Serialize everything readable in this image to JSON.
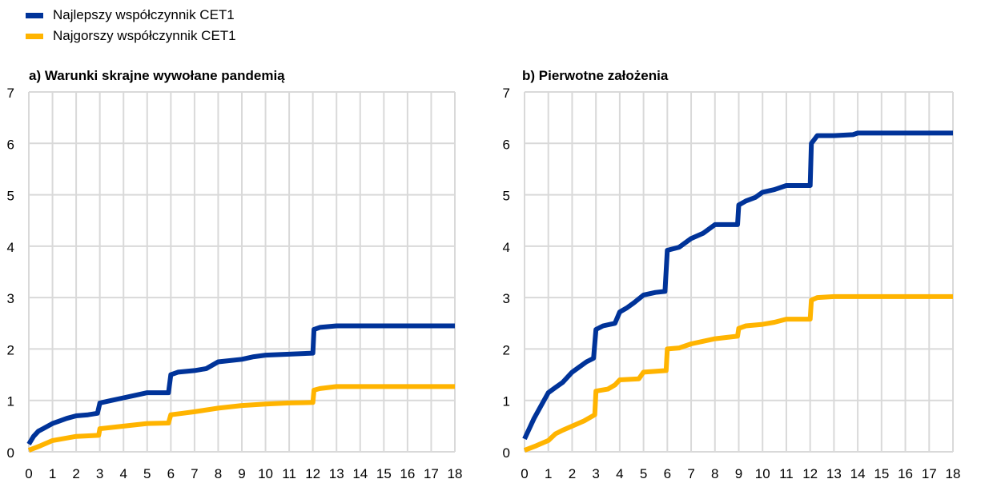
{
  "legend": {
    "items": [
      {
        "label": "Najlepszy współczynnik CET1",
        "color": "#003399"
      },
      {
        "label": "Najgorszy współczynnik CET1",
        "color": "#FFB400"
      }
    ]
  },
  "chart_data": [
    {
      "type": "line",
      "title": "a) Warunki skrajne wywołane pandemią",
      "xlim": [
        0,
        18
      ],
      "ylim": [
        0,
        7
      ],
      "xticks": [
        "0",
        "1",
        "2",
        "3",
        "4",
        "5",
        "6",
        "7",
        "8",
        "9",
        "10",
        "11",
        "12",
        "13",
        "14",
        "15",
        "16",
        "17",
        "18"
      ],
      "yticks": [
        "0",
        "1",
        "2",
        "3",
        "4",
        "5",
        "6",
        "7"
      ],
      "grid": true,
      "series": [
        {
          "name": "Najlepszy współczynnik CET1",
          "color": "#003399",
          "points": [
            [
              0,
              0.15
            ],
            [
              0.2,
              0.3
            ],
            [
              0.4,
              0.4
            ],
            [
              0.6,
              0.45
            ],
            [
              0.8,
              0.5
            ],
            [
              1,
              0.55
            ],
            [
              1.3,
              0.6
            ],
            [
              1.6,
              0.65
            ],
            [
              2,
              0.7
            ],
            [
              2.5,
              0.72
            ],
            [
              2.9,
              0.75
            ],
            [
              3,
              0.95
            ],
            [
              3.5,
              1.0
            ],
            [
              4,
              1.05
            ],
            [
              4.5,
              1.1
            ],
            [
              5,
              1.15
            ],
            [
              5.9,
              1.15
            ],
            [
              6,
              1.5
            ],
            [
              6.3,
              1.55
            ],
            [
              7,
              1.58
            ],
            [
              7.5,
              1.62
            ],
            [
              8,
              1.75
            ],
            [
              9,
              1.8
            ],
            [
              9.5,
              1.85
            ],
            [
              10,
              1.88
            ],
            [
              11,
              1.9
            ],
            [
              12,
              1.92
            ],
            [
              12.05,
              2.38
            ],
            [
              12.3,
              2.42
            ],
            [
              13,
              2.45
            ],
            [
              18,
              2.45
            ]
          ]
        },
        {
          "name": "Najgorszy współczynnik CET1",
          "color": "#FFB400",
          "points": [
            [
              0,
              0.03
            ],
            [
              0.5,
              0.12
            ],
            [
              1,
              0.22
            ],
            [
              2,
              0.3
            ],
            [
              2.95,
              0.32
            ],
            [
              3,
              0.45
            ],
            [
              4,
              0.5
            ],
            [
              5,
              0.55
            ],
            [
              5.9,
              0.56
            ],
            [
              6,
              0.72
            ],
            [
              6.5,
              0.75
            ],
            [
              7,
              0.78
            ],
            [
              8,
              0.85
            ],
            [
              9,
              0.9
            ],
            [
              10,
              0.93
            ],
            [
              11,
              0.95
            ],
            [
              12,
              0.96
            ],
            [
              12.05,
              1.2
            ],
            [
              12.3,
              1.23
            ],
            [
              13,
              1.27
            ],
            [
              18,
              1.27
            ]
          ]
        }
      ]
    },
    {
      "type": "line",
      "title": "b) Pierwotne założenia",
      "xlim": [
        0,
        18
      ],
      "ylim": [
        0,
        7
      ],
      "xticks": [
        "0",
        "1",
        "2",
        "3",
        "4",
        "5",
        "6",
        "7",
        "8",
        "9",
        "10",
        "11",
        "12",
        "13",
        "14",
        "15",
        "16",
        "17",
        "18"
      ],
      "yticks": [
        "0",
        "1",
        "2",
        "3",
        "4",
        "5",
        "6",
        "7"
      ],
      "grid": true,
      "series": [
        {
          "name": "Najlepszy współczynnik CET1",
          "color": "#003399",
          "points": [
            [
              0,
              0.25
            ],
            [
              0.2,
              0.45
            ],
            [
              0.4,
              0.65
            ],
            [
              0.7,
              0.9
            ],
            [
              1,
              1.15
            ],
            [
              1.3,
              1.25
            ],
            [
              1.6,
              1.35
            ],
            [
              2,
              1.55
            ],
            [
              2.3,
              1.65
            ],
            [
              2.6,
              1.75
            ],
            [
              2.9,
              1.82
            ],
            [
              3,
              2.38
            ],
            [
              3.3,
              2.45
            ],
            [
              3.8,
              2.5
            ],
            [
              4,
              2.72
            ],
            [
              4.3,
              2.8
            ],
            [
              4.6,
              2.9
            ],
            [
              5,
              3.05
            ],
            [
              5.5,
              3.1
            ],
            [
              5.9,
              3.12
            ],
            [
              6,
              3.92
            ],
            [
              6.5,
              3.98
            ],
            [
              7,
              4.15
            ],
            [
              7.5,
              4.25
            ],
            [
              8,
              4.42
            ],
            [
              8.95,
              4.42
            ],
            [
              9,
              4.8
            ],
            [
              9.3,
              4.88
            ],
            [
              9.7,
              4.95
            ],
            [
              10,
              5.05
            ],
            [
              10.5,
              5.1
            ],
            [
              11,
              5.18
            ],
            [
              12,
              5.18
            ],
            [
              12.05,
              6.0
            ],
            [
              12.3,
              6.15
            ],
            [
              13,
              6.15
            ],
            [
              13.8,
              6.17
            ],
            [
              14,
              6.2
            ],
            [
              18,
              6.2
            ]
          ]
        },
        {
          "name": "Najgorszy współczynnik CET1",
          "color": "#FFB400",
          "points": [
            [
              0,
              0.03
            ],
            [
              0.5,
              0.12
            ],
            [
              1,
              0.22
            ],
            [
              1.3,
              0.35
            ],
            [
              1.6,
              0.42
            ],
            [
              2,
              0.5
            ],
            [
              2.5,
              0.6
            ],
            [
              2.95,
              0.72
            ],
            [
              3,
              1.18
            ],
            [
              3.5,
              1.22
            ],
            [
              3.8,
              1.3
            ],
            [
              4,
              1.4
            ],
            [
              4.8,
              1.42
            ],
            [
              5,
              1.55
            ],
            [
              5.95,
              1.58
            ],
            [
              6,
              2.0
            ],
            [
              6.5,
              2.02
            ],
            [
              7,
              2.1
            ],
            [
              7.5,
              2.15
            ],
            [
              8,
              2.2
            ],
            [
              8.95,
              2.25
            ],
            [
              9,
              2.4
            ],
            [
              9.3,
              2.45
            ],
            [
              10,
              2.48
            ],
            [
              10.5,
              2.52
            ],
            [
              11,
              2.58
            ],
            [
              12,
              2.58
            ],
            [
              12.05,
              2.95
            ],
            [
              12.3,
              3.0
            ],
            [
              13,
              3.02
            ],
            [
              18,
              3.02
            ]
          ]
        }
      ]
    }
  ]
}
